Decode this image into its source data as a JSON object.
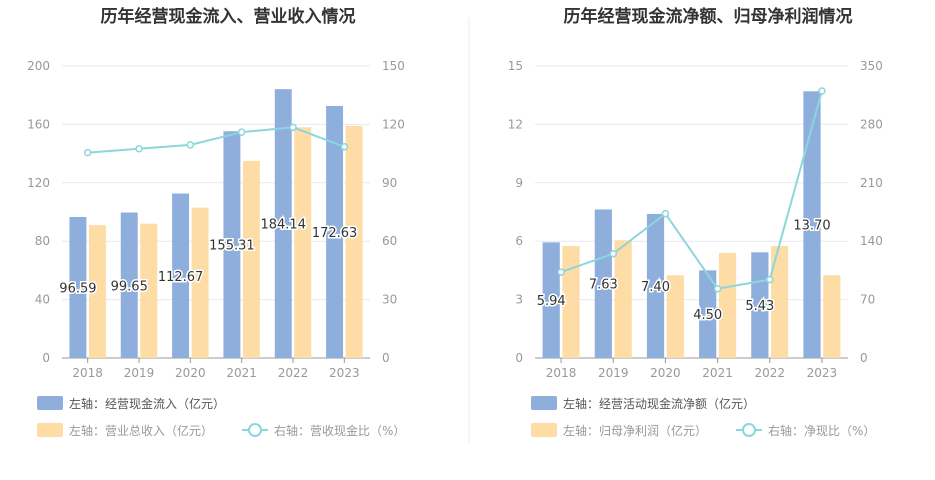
{
  "chart_data": [
    {
      "type": "bar",
      "title": "历年经营现金流入、营业收入情况",
      "categories": [
        "2018",
        "2019",
        "2020",
        "2021",
        "2022",
        "2023"
      ],
      "y_left": {
        "ticks": [
          0,
          40,
          80,
          120,
          160,
          200
        ],
        "range": [
          0,
          200
        ]
      },
      "y_right": {
        "ticks": [
          0,
          30,
          60,
          90,
          120,
          150
        ],
        "range": [
          0,
          150
        ]
      },
      "series": [
        {
          "name": "左轴：经营现金流入（亿元）",
          "kind": "bar",
          "axis": "left",
          "color": "#8eaedc",
          "values": [
            96.59,
            99.65,
            112.67,
            155.31,
            184.14,
            172.63
          ],
          "labels": [
            "96.59",
            "99.65",
            "112.67",
            "155.31",
            "184.14",
            "172.63"
          ]
        },
        {
          "name": "左轴：营业总收入（亿元）",
          "kind": "bar",
          "axis": "left",
          "color": "#fedca5",
          "values": [
            91,
            92,
            103,
            135,
            158,
            159
          ]
        },
        {
          "name": "右轴：营收现金比（%）",
          "kind": "line",
          "axis": "right",
          "color": "#8cd6dc",
          "values": [
            105.5,
            107.5,
            109.5,
            116,
            118.5,
            108.5
          ]
        }
      ]
    },
    {
      "type": "bar",
      "title": "历年经营现金流净额、归母净利润情况",
      "categories": [
        "2018",
        "2019",
        "2020",
        "2021",
        "2022",
        "2023"
      ],
      "y_left": {
        "ticks": [
          0,
          3,
          6,
          9,
          12,
          15
        ],
        "range": [
          0,
          15
        ]
      },
      "y_right": {
        "ticks": [
          0,
          70,
          140,
          210,
          280,
          350
        ],
        "range": [
          0,
          350
        ]
      },
      "series": [
        {
          "name": "左轴：经营活动现金流净额（亿元）",
          "kind": "bar",
          "axis": "left",
          "color": "#8eaedc",
          "values": [
            5.94,
            7.63,
            7.4,
            4.5,
            5.43,
            13.7
          ],
          "labels": [
            "5.94",
            "7.63",
            "7.40",
            "4.50",
            "5.43",
            "13.70"
          ]
        },
        {
          "name": "左轴：归母净利润（亿元）",
          "kind": "bar",
          "axis": "left",
          "color": "#fedca5",
          "values": [
            5.75,
            6.05,
            4.25,
            5.4,
            5.75,
            4.25
          ]
        },
        {
          "name": "右轴：净现比（%）",
          "kind": "line",
          "axis": "right",
          "color": "#8cd6dc",
          "values": [
            103,
            125,
            173,
            83,
            94,
            320
          ]
        }
      ]
    }
  ]
}
